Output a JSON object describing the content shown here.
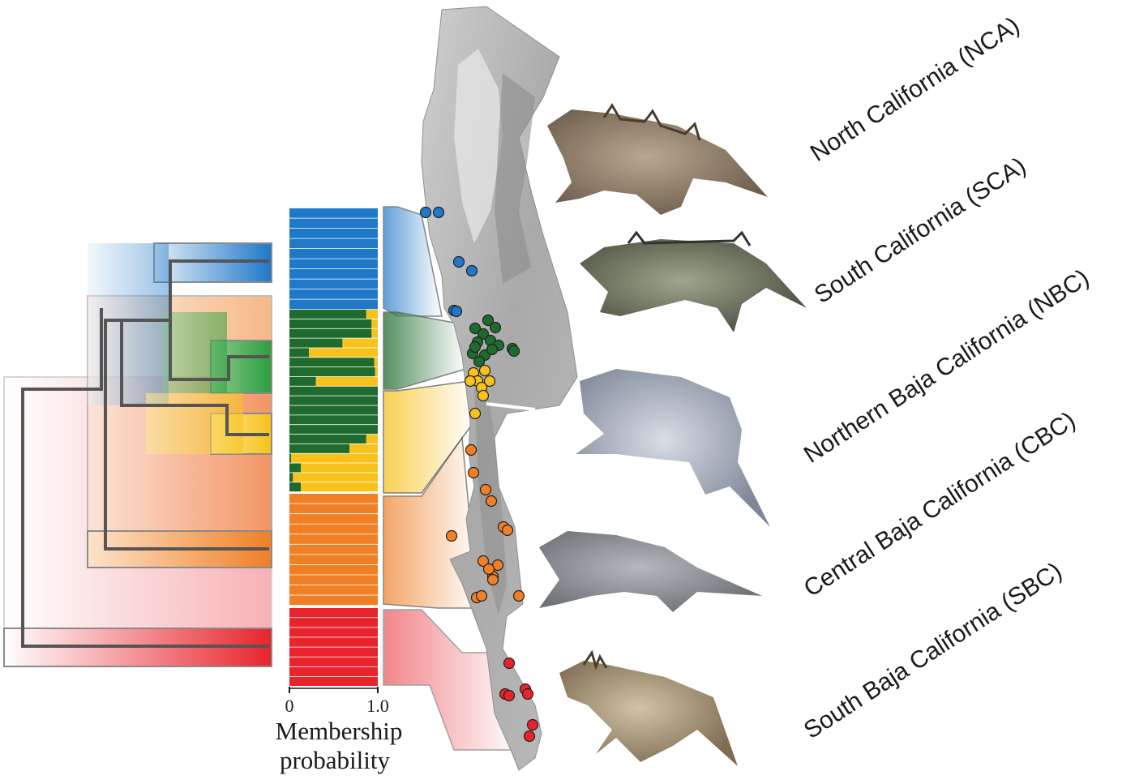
{
  "clades": [
    {
      "key": "NCA",
      "label": "North California (NCA)",
      "color": "#1f78c8"
    },
    {
      "key": "SCA",
      "label": "South California (SCA)",
      "color": "#1f6b2e"
    },
    {
      "key": "NBC",
      "label": "Northern Baja California (NBC)",
      "color": "#f8c21c"
    },
    {
      "key": "CBC",
      "label": "Central Baja California (CBC)",
      "color": "#f07f25"
    },
    {
      "key": "SBC",
      "label": "South Baja California (SBC)",
      "color": "#e8232b"
    }
  ],
  "membership": {
    "axis_min_label": "0",
    "axis_max_label": "1.0",
    "title_line1": "Membership",
    "title_line2": "probability",
    "blue_rows": 10,
    "orange_rows": 11,
    "red_rows": 8,
    "admixed_green_fraction": [
      0.87,
      0.93,
      0.93,
      0.6,
      0.22,
      0.96,
      0.97,
      0.3,
      1,
      1,
      1,
      1,
      1,
      0.87,
      0.68,
      0.02,
      0.13,
      0.04,
      0.13
    ]
  },
  "colors": {
    "NCA": "#1f78c8",
    "SCA": "#1f6b2e",
    "NBC": "#f8c21c",
    "CBC": "#f07f25",
    "SBC": "#e8232b",
    "tree_line": "#555555",
    "box_outline": "#8a8a8a"
  }
}
